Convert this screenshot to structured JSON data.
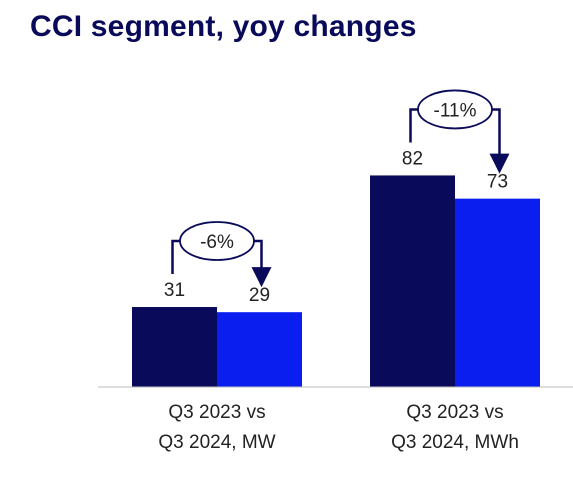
{
  "title": "CCI segment, yoy changes",
  "chart_data": {
    "type": "bar",
    "groups": [
      {
        "label_line1": "Q3 2023 vs",
        "label_line2": "Q3 2024, MW",
        "values": [
          31,
          29
        ],
        "value_labels": [
          "31",
          "29"
        ],
        "change_label": "-6%"
      },
      {
        "label_line1": "Q3 2023 vs",
        "label_line2": "Q3 2024, MWh",
        "values": [
          82,
          73
        ],
        "value_labels": [
          "82",
          "73"
        ],
        "change_label": "-11%"
      }
    ],
    "series_colors": [
      "#0a0a5a",
      "#0a1ef0"
    ],
    "ylim": [
      0,
      100
    ],
    "grid": false,
    "legend": "none"
  }
}
